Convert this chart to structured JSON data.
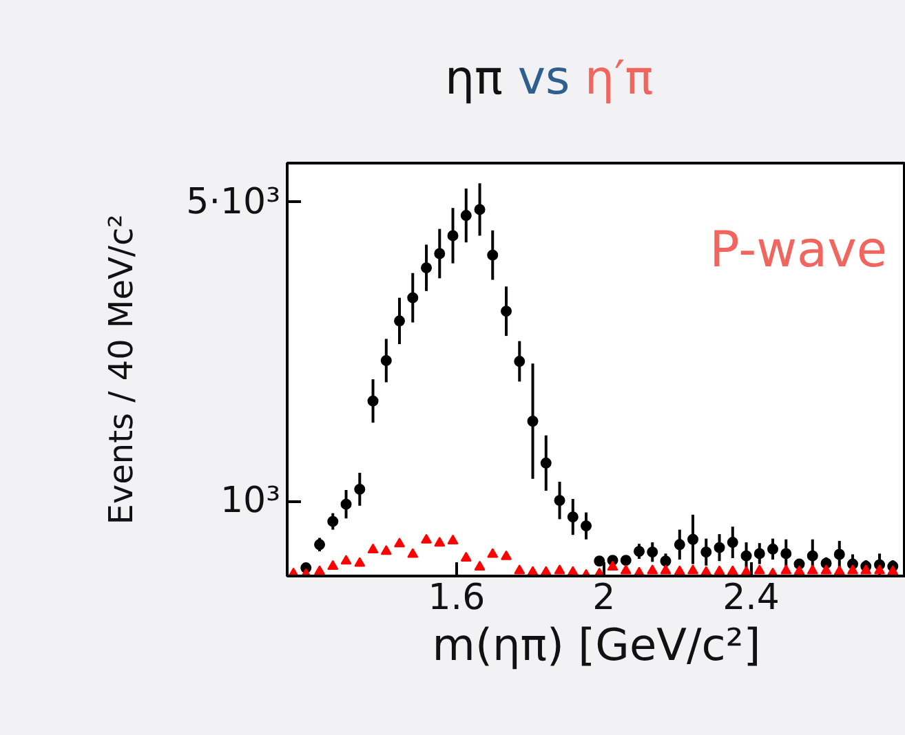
{
  "chart_data": {
    "type": "scatter",
    "title": "ηπ vs η′π",
    "xlabel": "m(ηπ) [GeV/c²]",
    "ylabel": "Events / 40 MeV/c²",
    "annotations": [
      "P-wave"
    ],
    "x": [
      1.157,
      1.191,
      1.228,
      1.264,
      1.3,
      1.337,
      1.373,
      1.409,
      1.445,
      1.481,
      1.518,
      1.554,
      1.59,
      1.626,
      1.663,
      1.698,
      1.735,
      1.771,
      1.807,
      1.843,
      1.88,
      1.916,
      1.952,
      1.988,
      2.024,
      2.06,
      2.096,
      2.132,
      2.168,
      2.206,
      2.242,
      2.278,
      2.314,
      2.35,
      2.387,
      2.423,
      2.459,
      2.495,
      2.531,
      2.567,
      2.604,
      2.64,
      2.676,
      2.712,
      2.749,
      2.785
    ],
    "series": [
      {
        "color": "#000000",
        "marker": "circle",
        "values": [
          null,
          110,
          420,
          730,
          960,
          1160,
          2340,
          2880,
          3410,
          3720,
          4120,
          4310,
          4550,
          4820,
          4900,
          4290,
          3540,
          2870,
          2070,
          1510,
          1010,
          790,
          670,
          200,
          210,
          210,
          330,
          320,
          200,
          420,
          490,
          320,
          380,
          450,
          270,
          300,
          360,
          300,
          160,
          270,
          170,
          290,
          160,
          130,
          150,
          130
        ],
        "errors": [
          null,
          50,
          90,
          110,
          190,
          220,
          290,
          290,
          310,
          330,
          310,
          330,
          370,
          360,
          350,
          330,
          330,
          270,
          770,
          370,
          250,
          240,
          180,
          60,
          60,
          60,
          100,
          130,
          100,
          200,
          330,
          180,
          180,
          210,
          180,
          140,
          140,
          190,
          60,
          220,
          80,
          180,
          130,
          80,
          150,
          80
        ]
      },
      {
        "color": "#ff0000",
        "marker": "triangle",
        "values": [
          30,
          20,
          60,
          130,
          200,
          170,
          350,
          330,
          430,
          290,
          480,
          440,
          470,
          240,
          120,
          290,
          260,
          70,
          50,
          50,
          70,
          50,
          10,
          30,
          120,
          70,
          40,
          70,
          70,
          60,
          70,
          50,
          60,
          60,
          50,
          70,
          30,
          70,
          60,
          70,
          70,
          60,
          70,
          70,
          70,
          60
        ]
      }
    ],
    "xlim": [
      1.14,
      2.82
    ],
    "ylim": [
      0,
      5520
    ],
    "xticks": [
      1.6,
      2,
      2.4
    ],
    "yticks": [
      {
        "value": 1000,
        "label": "10³"
      },
      {
        "value": 5000,
        "label": "5·10³"
      }
    ],
    "grid": false
  }
}
